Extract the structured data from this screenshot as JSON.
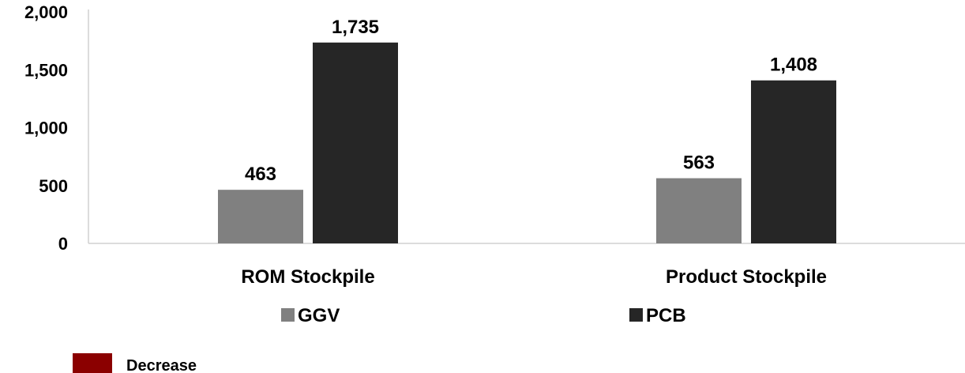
{
  "chart_data": {
    "type": "bar",
    "categories": [
      "ROM Stockpile",
      "Product Stockpile"
    ],
    "series": [
      {
        "name": "GGV",
        "values": [
          463,
          563
        ],
        "color": "#808080"
      },
      {
        "name": "PCB",
        "values": [
          1735,
          1408
        ],
        "color": "#262626"
      }
    ],
    "y_ticks": [
      "0",
      "500",
      "1,000",
      "1,500",
      "2,000"
    ],
    "data_labels": [
      [
        "463",
        "563"
      ],
      [
        "1,735",
        "1,408"
      ]
    ],
    "ylim": [
      0,
      2000
    ],
    "grid": false,
    "legend_position": "bottom"
  },
  "note": {
    "label": "Decrease",
    "color": "#8B0000"
  }
}
